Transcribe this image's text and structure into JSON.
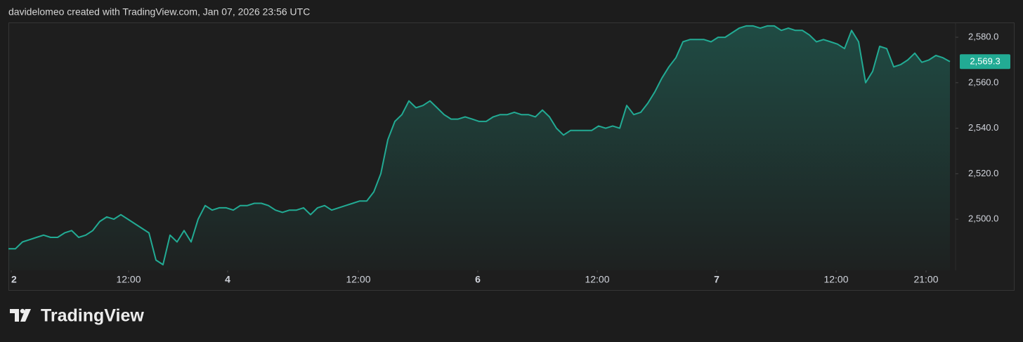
{
  "header": "davidelomeo created with TradingView.com, Jan 07, 2026 23:56 UTC",
  "brand": "TradingView",
  "chart_data": {
    "type": "area",
    "color": "#22ab94",
    "values": [
      2487,
      2487,
      2490,
      2491,
      2492,
      2493,
      2492,
      2492,
      2494,
      2495,
      2492,
      2493,
      2495,
      2499,
      2501,
      2500,
      2502,
      2500,
      2498,
      2496,
      2494,
      2482,
      2480,
      2493,
      2490,
      2495,
      2490,
      2500,
      2506,
      2504,
      2505,
      2505,
      2504,
      2506,
      2506,
      2507,
      2507,
      2506,
      2504,
      2503,
      2504,
      2504,
      2505,
      2502,
      2505,
      2506,
      2504,
      2505,
      2506,
      2507,
      2508,
      2508,
      2512,
      2520,
      2535,
      2543,
      2546,
      2552,
      2549,
      2550,
      2552,
      2549,
      2546,
      2544,
      2544,
      2545,
      2544,
      2543,
      2543,
      2545,
      2546,
      2546,
      2547,
      2546,
      2546,
      2545,
      2548,
      2545,
      2540,
      2537,
      2539,
      2539,
      2539,
      2539,
      2541,
      2540,
      2541,
      2540,
      2550,
      2546,
      2547,
      2551,
      2556,
      2562,
      2567,
      2571,
      2578,
      2579,
      2579,
      2579,
      2578,
      2580,
      2580,
      2582,
      2584,
      2585,
      2585,
      2584,
      2585,
      2585,
      2583,
      2584,
      2583,
      2583,
      2581,
      2578,
      2579,
      2578,
      2577,
      2575,
      2583,
      2578,
      2560,
      2565,
      2576,
      2575,
      2567,
      2568,
      2570,
      2573,
      2569,
      2570,
      2572,
      2571,
      2569.3
    ],
    "xlim": [
      0,
      134.5
    ],
    "xticks": [
      {
        "value": 0.4,
        "label": "2"
      },
      {
        "value": 17.1,
        "label": "12:00"
      },
      {
        "value": 31.2,
        "label": "4"
      },
      {
        "value": 49.8,
        "label": "12:00"
      },
      {
        "value": 66.8,
        "label": "6"
      },
      {
        "value": 83.8,
        "label": "12:00"
      },
      {
        "value": 100.8,
        "label": "7"
      },
      {
        "value": 117.8,
        "label": "12:00"
      },
      {
        "value": 130.6,
        "label": "21:00"
      }
    ],
    "ylim": [
      2477.5,
      2586.5
    ],
    "yticks": [
      {
        "value": 2500,
        "label": "2,500.0"
      },
      {
        "value": 2520,
        "label": "2,520.0"
      },
      {
        "value": 2540,
        "label": "2,540.0"
      },
      {
        "value": 2560,
        "label": "2,560.0"
      },
      {
        "value": 2580,
        "label": "2,580.0"
      }
    ],
    "price_label": {
      "value": 2569.3,
      "label": "2,569.3"
    }
  }
}
